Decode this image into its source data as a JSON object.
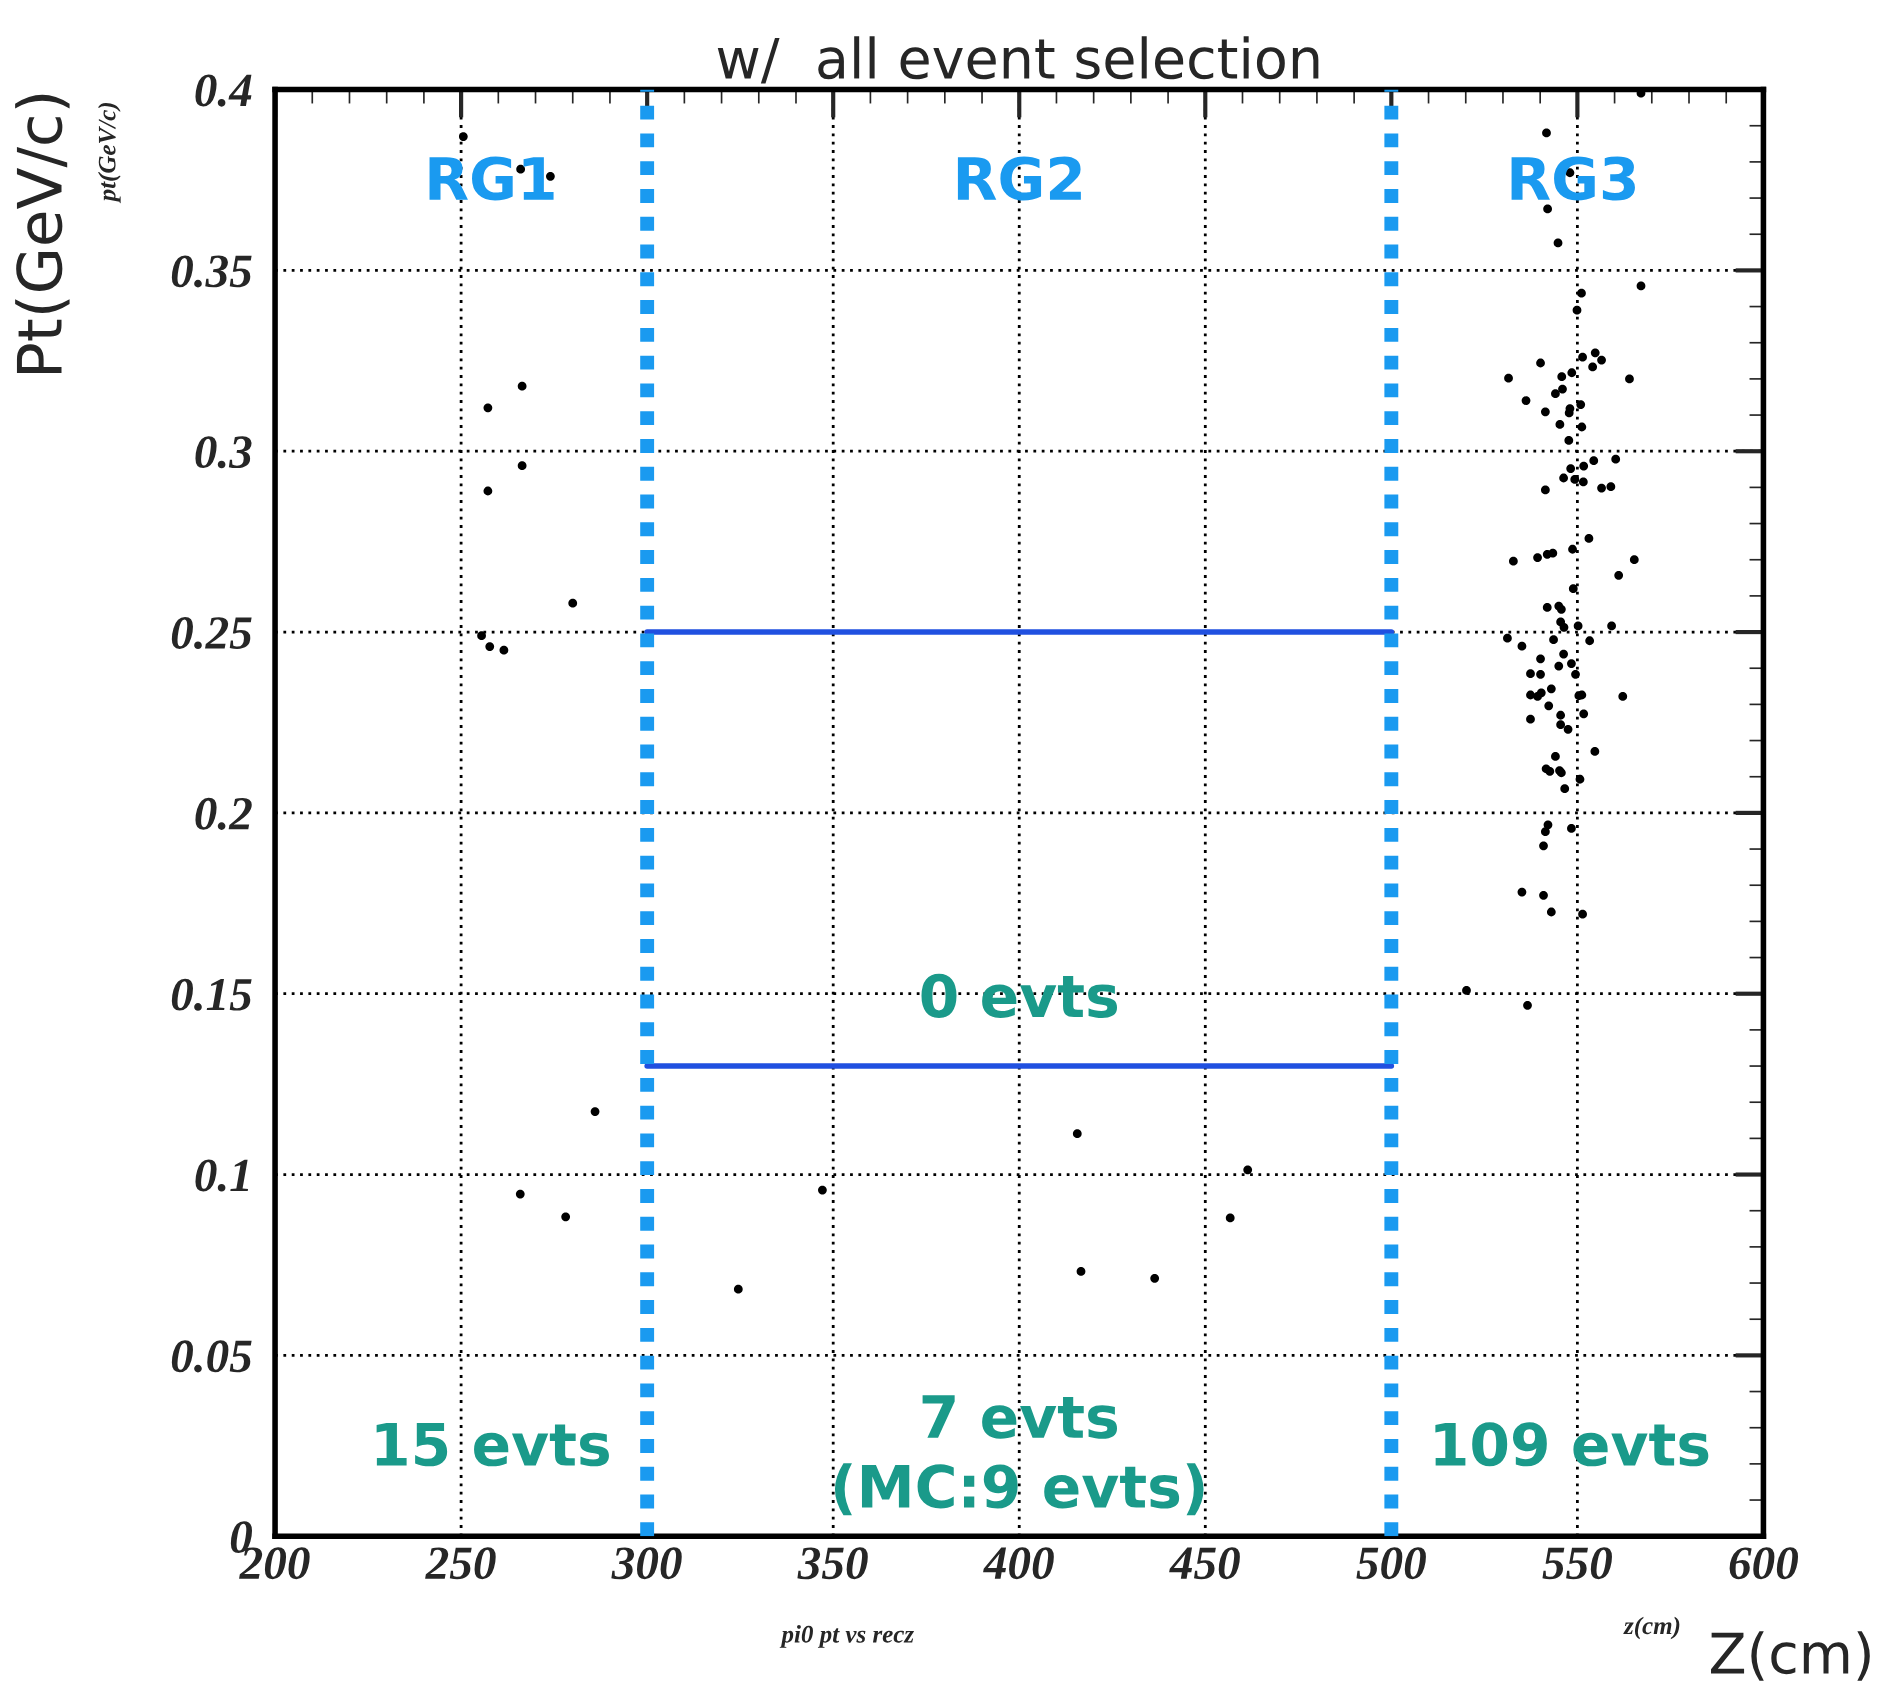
{
  "chart_data": {
    "type": "scatter",
    "title": "w/  all event selection",
    "xlabel": "Z(cm)",
    "ylabel": "Pt(GeV/c)",
    "xlim": [
      200,
      600
    ],
    "ylim": [
      0,
      0.4
    ],
    "xticks": [
      200,
      250,
      300,
      350,
      400,
      450,
      500,
      550,
      600
    ],
    "yticks": [
      0,
      0.05,
      0.1,
      0.15,
      0.2,
      0.25,
      0.3,
      0.35,
      0.4
    ],
    "grid": true,
    "ref_lines": [
      {
        "axis": "x",
        "value": 300,
        "color": "#1a9af0",
        "line_style": "dotted"
      },
      {
        "axis": "x",
        "value": 500,
        "color": "#1a9af0",
        "line_style": "dotted"
      }
    ],
    "annotations": [
      "RG1",
      "RG2",
      "RG3",
      "0 evts",
      "15 evts",
      "7 evts\n(MC:9 evts)",
      "109 evts",
      "pi0 pt vs recz",
      "z(cm)",
      "pt(GeV/c)"
    ],
    "series": [
      {
        "color": "#000000",
        "marker": "circle",
        "x": [
          250.6,
          274,
          266,
          266.4,
          257.2,
          266.4,
          257.2,
          280,
          255.5,
          257.7,
          261.5,
          265.9,
          278.1,
          286,
          324.5,
          347.1,
          415.6,
          416.6,
          436.4,
          456.7,
          461.4,
          567.1,
          541.7,
          548,
          542,
          544.8,
          551.1,
          567.1,
          549.9,
          540.1,
          531.5,
          551.4,
          554.8,
          556.5,
          554.1,
          548.5,
          545.8,
          564,
          546,
          544.1,
          536.2,
          550.9,
          541.4,
          548,
          547.8,
          545.3,
          551.2,
          547.7,
          554.4,
          560.3,
          551.7,
          548.2,
          546.3,
          549.3,
          551.6,
          541.4,
          556.5,
          559,
          553.1,
          548.7,
          543.4,
          541.9,
          539.3,
          532.8,
          565.3,
          561.1,
          548.9,
          541.9,
          545,
          545.7,
          545.5,
          546.4,
          550.2,
          559.2,
          531.2,
          543.6,
          553.3,
          535.1,
          546.3,
          540.1,
          548.4,
          545,
          537.4,
          540.1,
          549.5,
          543,
          537.4,
          539.3,
          540.3,
          550.4,
          551.2,
          562.2,
          542.3,
          551.7,
          545.5,
          537.4,
          545.5,
          547.5,
          554.7,
          544.1,
          541.6,
          542.6,
          545.2,
          545.7,
          550.7,
          546.6,
          542.1,
          548.4,
          541.4,
          540.9,
          535.1,
          540.9,
          543,
          551.4,
          520.2,
          536.6
        ],
        "values": [
          0.387,
          0.376,
          0.378,
          0.318,
          0.312,
          0.296,
          0.289,
          0.258,
          0.249,
          0.246,
          0.245,
          0.0946,
          0.0883,
          0.1174,
          0.0683,
          0.0957,
          0.1113,
          0.0732,
          0.0713,
          0.088,
          0.1013,
          0.399,
          0.388,
          0.377,
          0.367,
          0.3576,
          0.3437,
          0.3457,
          0.339,
          0.3244,
          0.3202,
          0.326,
          0.3272,
          0.3252,
          0.3233,
          0.3217,
          0.3206,
          0.32,
          0.3172,
          0.3159,
          0.314,
          0.3129,
          0.3109,
          0.3118,
          0.3106,
          0.3074,
          0.3067,
          0.303,
          0.2974,
          0.2978,
          0.2959,
          0.2952,
          0.2926,
          0.2922,
          0.2915,
          0.2893,
          0.2898,
          0.2902,
          0.2759,
          0.2729,
          0.2718,
          0.2715,
          0.2706,
          0.2696,
          0.27,
          0.2657,
          0.262,
          0.2568,
          0.2572,
          0.2563,
          0.2528,
          0.2513,
          0.2517,
          0.2517,
          0.2483,
          0.2479,
          0.2476,
          0.2461,
          0.2439,
          0.2426,
          0.2413,
          0.2406,
          0.2385,
          0.2383,
          0.2383,
          0.2343,
          0.2326,
          0.2322,
          0.2332,
          0.2324,
          0.2326,
          0.2322,
          0.2296,
          0.2274,
          0.227,
          0.2259,
          0.2244,
          0.2231,
          0.217,
          0.2156,
          0.2122,
          0.2115,
          0.2117,
          0.2111,
          0.2093,
          0.2067,
          0.1967,
          0.1957,
          0.1948,
          0.1909,
          0.1781,
          0.1772,
          0.1726,
          0.172,
          0.1509,
          0.1468
        ]
      },
      {
        "type": "line",
        "color": "#2050e0",
        "x": [
          300,
          500
        ],
        "values": [
          0.25,
          0.25
        ]
      },
      {
        "type": "line",
        "color": "#2050e0",
        "x": [
          300,
          500
        ],
        "values": [
          0.13,
          0.13
        ]
      }
    ]
  }
}
